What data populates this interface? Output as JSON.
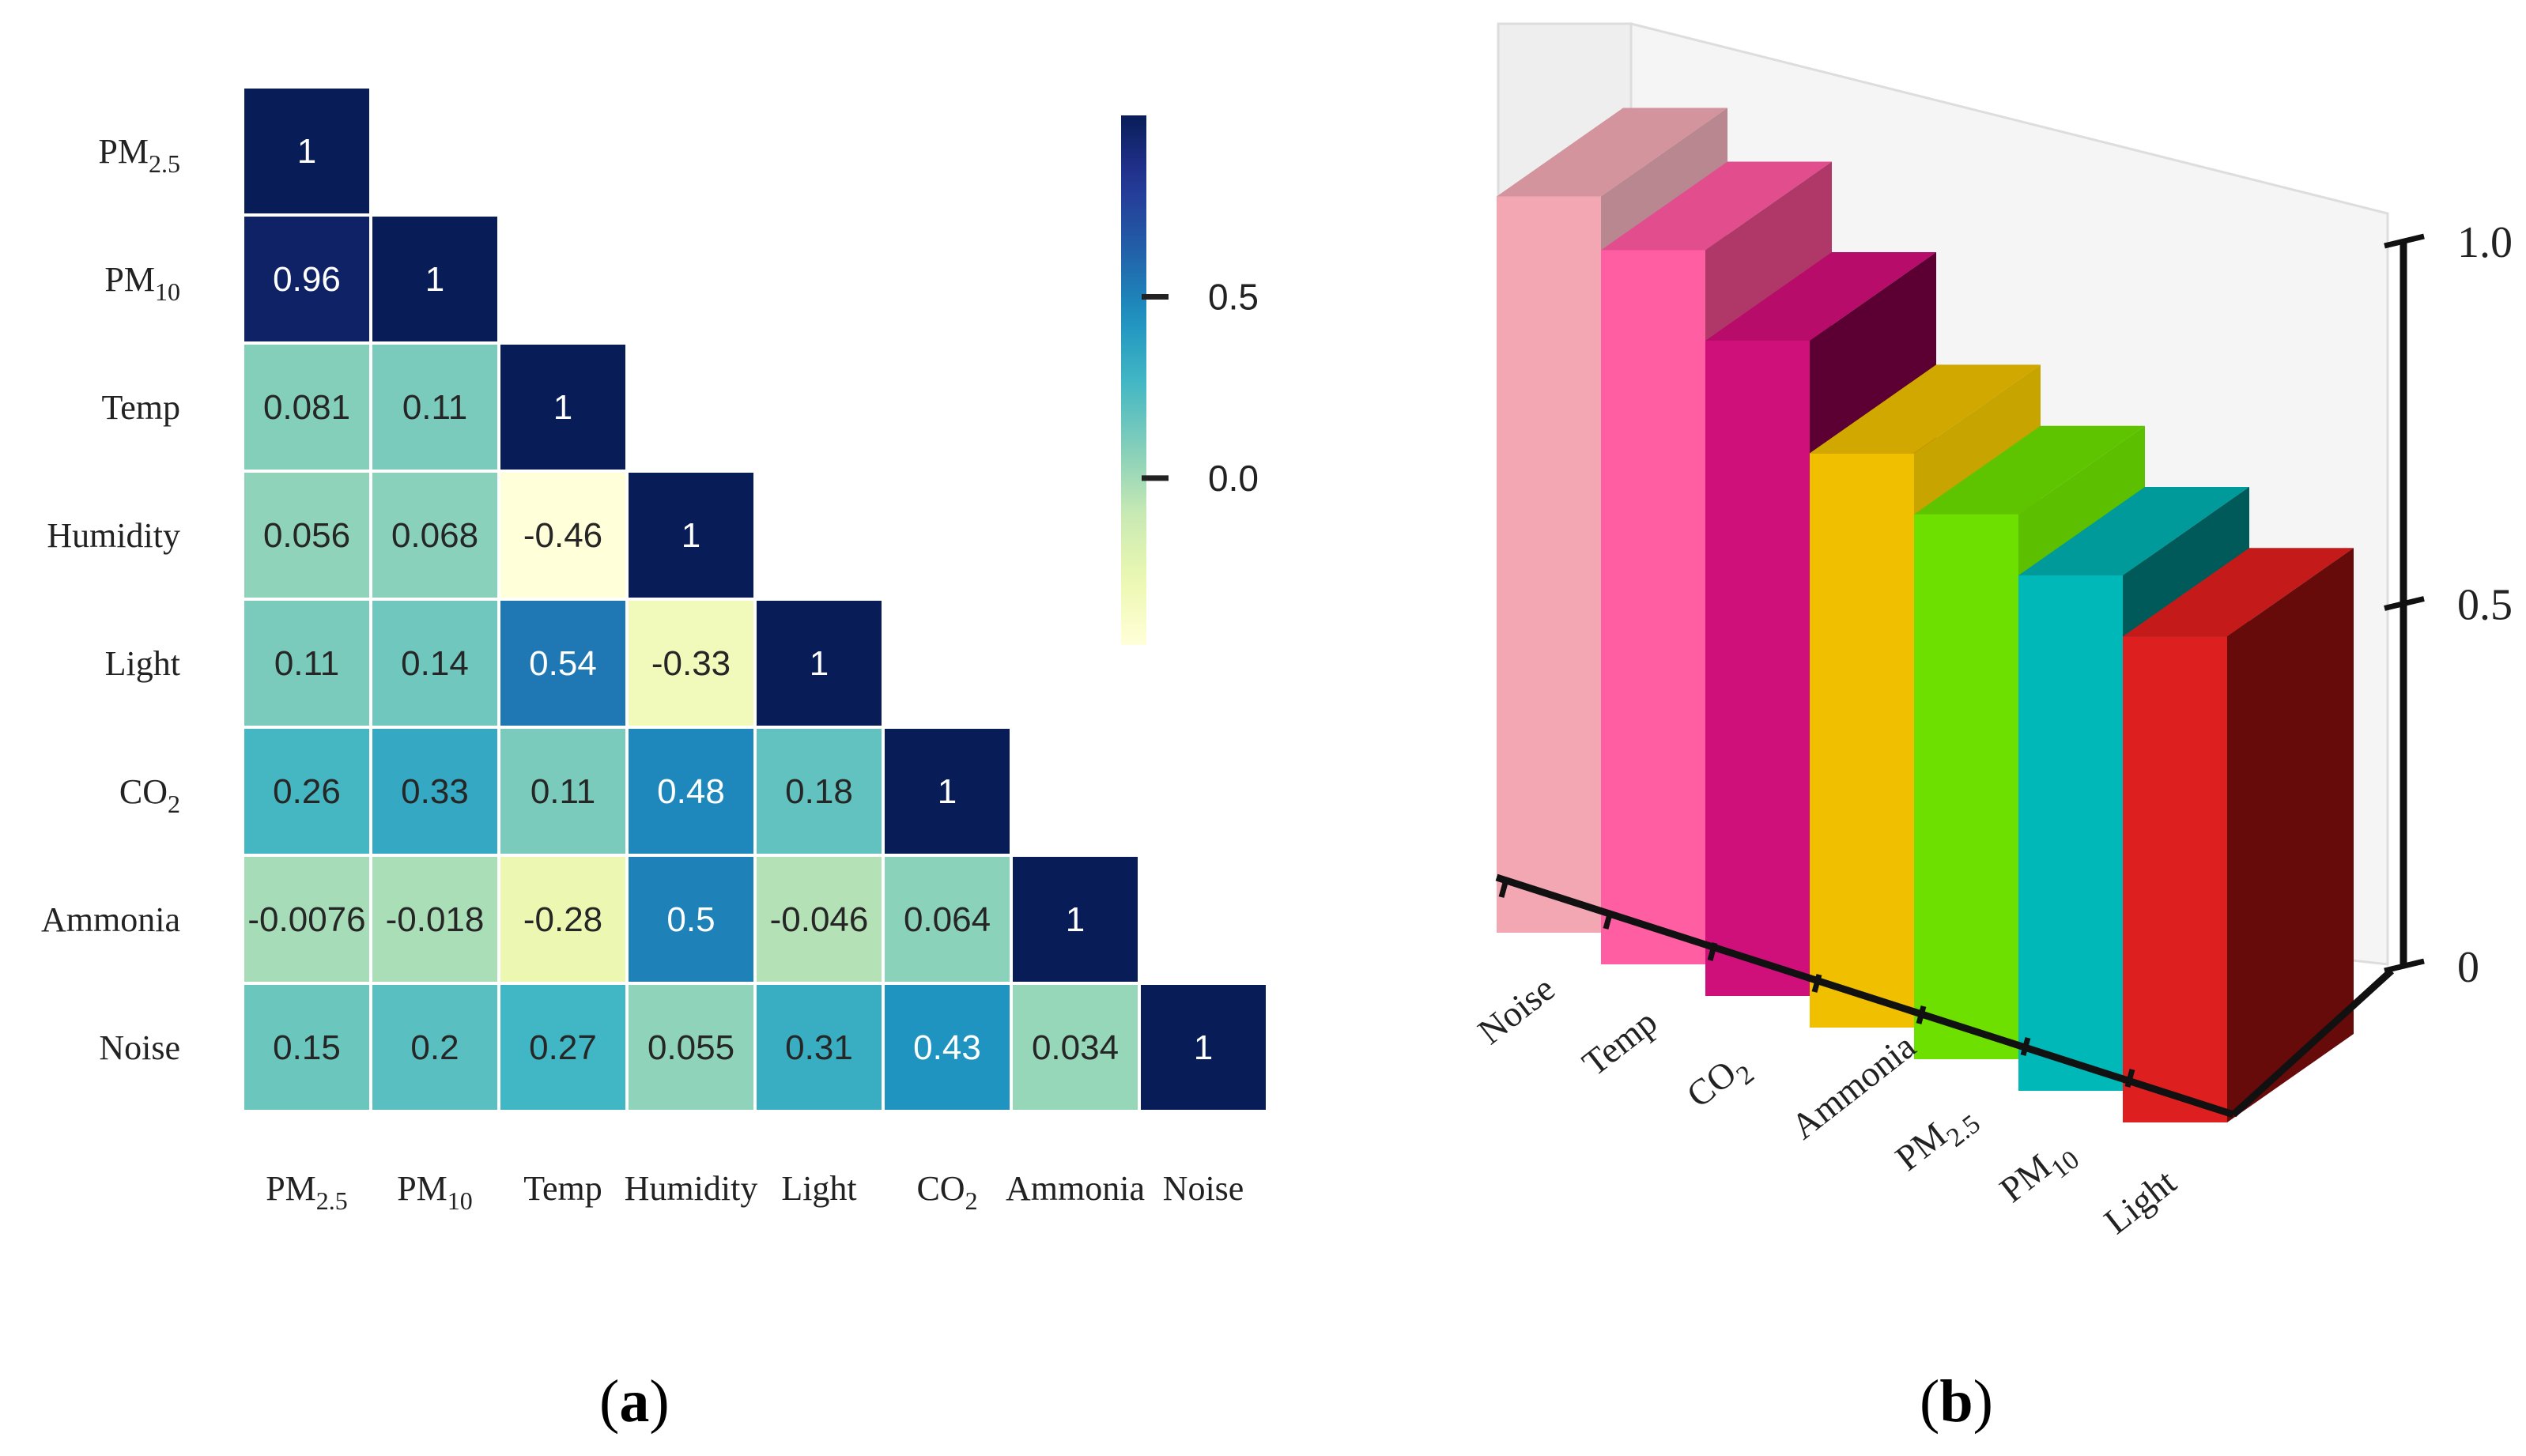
{
  "heatmap": {
    "chart_data": {
      "type": "heatmap",
      "variables": [
        {
          "base": "PM",
          "sub": "2.5"
        },
        {
          "base": "PM",
          "sub": "10"
        },
        {
          "base": "Temp",
          "sub": ""
        },
        {
          "base": "Humidity",
          "sub": ""
        },
        {
          "base": "Light",
          "sub": ""
        },
        {
          "base": "CO",
          "sub": "2"
        },
        {
          "base": "Ammonia",
          "sub": ""
        },
        {
          "base": "Noise",
          "sub": ""
        }
      ],
      "matrix_lower": [
        [
          "1"
        ],
        [
          "0.96",
          "1"
        ],
        [
          "0.081",
          "0.11",
          "1"
        ],
        [
          "0.056",
          "0.068",
          "-0.46",
          "1"
        ],
        [
          "0.11",
          "0.14",
          "0.54",
          "-0.33",
          "1"
        ],
        [
          "0.26",
          "0.33",
          "0.11",
          "0.48",
          "0.18",
          "1"
        ],
        [
          "-0.0076",
          "-0.018",
          "-0.28",
          "0.5",
          "-0.046",
          "0.064",
          "1"
        ],
        [
          "0.15",
          "0.2",
          "0.27",
          "0.055",
          "0.31",
          "0.43",
          "0.034",
          "1"
        ]
      ],
      "colorbar": {
        "ticks": [
          "0.5",
          "0.0"
        ],
        "tick_values": [
          0.5,
          0.0
        ],
        "range": [
          -0.46,
          1.0
        ]
      },
      "colormap": "YlGnBu"
    },
    "panel_label": "a"
  },
  "bars3d": {
    "chart_data": {
      "type": "bar",
      "categories": [
        {
          "base": "Noise",
          "sub": ""
        },
        {
          "base": "Temp",
          "sub": ""
        },
        {
          "base": "CO",
          "sub": "2"
        },
        {
          "base": "Ammonia",
          "sub": ""
        },
        {
          "base": "PM",
          "sub": "2.5"
        },
        {
          "base": "PM",
          "sub": "10"
        },
        {
          "base": "Light",
          "sub": ""
        }
      ],
      "values": [
        1.0,
        0.97,
        0.89,
        0.78,
        0.74,
        0.7,
        0.66
      ],
      "colors": [
        "#f2a7b3",
        "#ff5fa2",
        "#d0107a",
        "#f0c000",
        "#6de000",
        "#00b8b8",
        "#dd1f1f"
      ],
      "side_colors": [
        "#b88790",
        "#b03868",
        "#5c0034",
        "#c8a400",
        "#5cc000",
        "#005a5a",
        "#660a0a"
      ],
      "top_colors": [
        "#d4949e",
        "#e24d8e",
        "#b80c6a",
        "#d1a800",
        "#5fc400",
        "#009a9a",
        "#c41a1a"
      ],
      "yticks": [
        "0",
        "0.5",
        "1.0"
      ],
      "ytick_values": [
        0,
        0.5,
        1.0
      ],
      "ylim": [
        0,
        1.0
      ]
    },
    "panel_label": "b"
  }
}
